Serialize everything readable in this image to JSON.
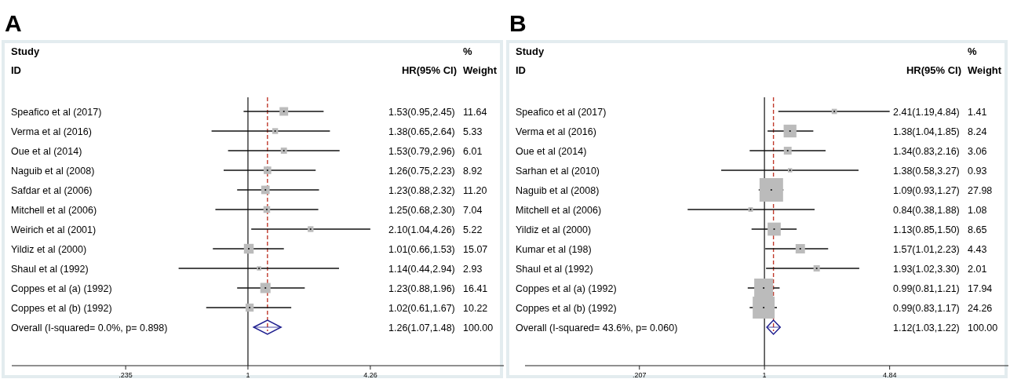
{
  "chart_data": [
    {
      "type": "scatter",
      "title": "A",
      "orientation": "horizontal",
      "log": "x",
      "annotations": [
        "Study",
        "ID",
        "HR(95% CI)",
        "%",
        "Weight",
        "1.53(0.95,2.45)",
        "11.64",
        "1.38(0.65,2.64)",
        "5.33",
        "1.53(0.79,2.96)",
        "6.01",
        "1.26(0.75,2.23)",
        "8.92",
        "1.23(0.88,2.32)",
        "11.20",
        "1.25(0.68,2.30)",
        "7.04",
        "2.10(1.04,4.26)",
        "5.22",
        "1.01(0.66,1.53)",
        "15.07",
        "1.14(0.44,2.94)",
        "2.93",
        "1.23(0.88,1.96)",
        "16.41",
        "1.02(0.61,1.67)",
        "10.22",
        "1.26(1.07,1.48)",
        "100.00"
      ],
      "categories": [
        "Speafico et al (2017)",
        "Verma et al (2016)",
        "Oue et al (2014)",
        "Naguib et al (2008)",
        "Safdar et al (2006)",
        "Mitchell et al (2006)",
        "Weirich et al (2001)",
        "Yildiz et al (2000)",
        "Shaul et al (1992)",
        "Coppes et al (a) (1992)",
        "Coppes et al (b) (1992)",
        "Overall (I-squared= 0.0%, p= 0.898)"
      ],
      "xlim": [
        0.061,
        20.7
      ],
      "xticks": [
        {
          "value": 0.235,
          "label": ".235"
        },
        1,
        4.26
      ],
      "ref_lines": [
        {
          "axis": "x",
          "value": 1,
          "color": "#333333",
          "line_style": "solid"
        },
        {
          "axis": "x",
          "value": 1.26,
          "color": "#c0392b",
          "line_style": "dashed"
        }
      ],
      "series": [
        {
          "color": "#bbbbbb",
          "marker": "square",
          "values": [
            1.53,
            1.38,
            1.53,
            1.26,
            1.23,
            1.25,
            2.1,
            1.01,
            1.14,
            1.23,
            1.02,
            null
          ],
          "errors": [
            [
              0.95,
              2.45
            ],
            [
              0.65,
              2.64
            ],
            [
              0.79,
              2.96
            ],
            [
              0.75,
              2.23
            ],
            [
              0.88,
              2.32
            ],
            [
              0.68,
              2.3
            ],
            [
              1.04,
              4.26
            ],
            [
              0.66,
              1.53
            ],
            [
              0.44,
              2.94
            ],
            [
              0.88,
              1.96
            ],
            [
              0.61,
              1.67
            ],
            null
          ],
          "sizes": [
            0.709,
            0.325,
            0.366,
            0.544,
            0.683,
            0.429,
            0.318,
            0.918,
            0.179,
            1,
            0.623,
            null
          ]
        },
        {
          "color": "#1f1f8f",
          "marker": "diamond",
          "values": [
            null,
            null,
            null,
            null,
            null,
            null,
            null,
            null,
            null,
            null,
            null,
            1.26
          ],
          "errors": [
            null,
            null,
            null,
            null,
            null,
            null,
            null,
            null,
            null,
            null,
            null,
            [
              1.07,
              1.48
            ]
          ]
        }
      ]
    },
    {
      "type": "scatter",
      "title": "B",
      "orientation": "horizontal",
      "log": "x",
      "annotations": [
        "Study",
        "ID",
        "HR(95% CI)",
        "%",
        "Weight",
        "2.41(1.19,4.84)",
        "1.41",
        "1.38(1.04,1.85)",
        "8.24",
        "1.34(0.83,2.16)",
        "3.06",
        "1.38(0.58,3.27)",
        "0.93",
        "1.09(0.93,1.27)",
        "27.98",
        "0.84(0.38,1.88)",
        "1.08",
        "1.13(0.85,1.50)",
        "8.65",
        "1.57(1.01,2.23)",
        "4.43",
        "1.93(1.02,3.30)",
        "2.01",
        "0.99(0.81,1.21)",
        "17.94",
        "0.99(0.83,1.17)",
        "24.26",
        "1.12(1.03,1.22)",
        "100.00"
      ],
      "categories": [
        "Speafico et al (2017)",
        "Verma et al (2016)",
        "Oue et al (2014)",
        "Sarhan et al (2010)",
        "Naguib et al (2008)",
        "Mitchell et al (2006)",
        "Yildiz et al (2000)",
        "Kumar et al (198)",
        "Shaul et al (1992)",
        "Coppes et al (a) (1992)",
        "Coppes et al (b) (1992)",
        "Overall (I-squared= 43.6%, p= 0.060)"
      ],
      "xlim": [
        0.049,
        21.6
      ],
      "xticks": [
        {
          "value": 0.207,
          "label": ".207"
        },
        1,
        4.84
      ],
      "ref_lines": [
        {
          "axis": "x",
          "value": 1,
          "color": "#333333",
          "line_style": "solid"
        },
        {
          "axis": "x",
          "value": 1.12,
          "color": "#c0392b",
          "line_style": "dashed"
        }
      ],
      "series": [
        {
          "color": "#bbbbbb",
          "marker": "square",
          "values": [
            2.41,
            1.38,
            1.34,
            1.38,
            1.09,
            0.84,
            1.13,
            1.57,
            1.93,
            0.99,
            0.99,
            null
          ],
          "errors": [
            [
              1.19,
              4.84
            ],
            [
              1.04,
              1.85
            ],
            [
              0.83,
              2.16
            ],
            [
              0.58,
              3.27
            ],
            [
              0.93,
              1.27
            ],
            [
              0.38,
              1.88
            ],
            [
              0.85,
              1.5
            ],
            [
              1.01,
              2.23
            ],
            [
              1.02,
              3.3
            ],
            [
              0.81,
              1.21
            ],
            [
              0.83,
              1.17
            ],
            null
          ],
          "sizes": [
            0.05,
            0.294,
            0.109,
            0.033,
            1,
            0.039,
            0.309,
            0.158,
            0.072,
            0.641,
            0.867,
            null
          ]
        },
        {
          "color": "#1f1f8f",
          "marker": "diamond",
          "values": [
            null,
            null,
            null,
            null,
            null,
            null,
            null,
            null,
            null,
            null,
            null,
            1.12
          ],
          "errors": [
            null,
            null,
            null,
            null,
            null,
            null,
            null,
            null,
            null,
            null,
            null,
            [
              1.03,
              1.22
            ]
          ]
        }
      ]
    }
  ]
}
